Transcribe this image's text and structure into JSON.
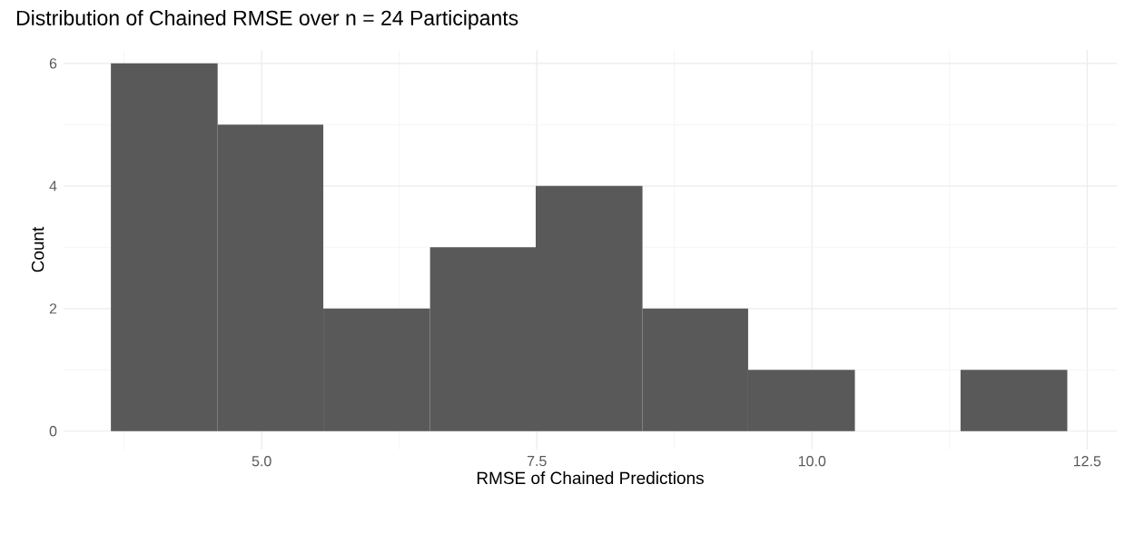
{
  "chart_data": {
    "type": "histogram",
    "title": "Distribution of Chained RMSE over n = 24 Participants",
    "xlabel": "RMSE of Chained Predictions",
    "ylabel": "Count",
    "bins": [
      3.63,
      4.6,
      5.56,
      6.53,
      7.49,
      8.46,
      9.42,
      10.39,
      11.35,
      12.32
    ],
    "values": [
      6,
      5,
      2,
      3,
      4,
      2,
      1,
      0,
      1
    ],
    "color": "#595959",
    "xlim": [
      3.2,
      12.77
    ],
    "ylim": [
      -0.3,
      6.22
    ],
    "xticks": [
      {
        "value": 5.0,
        "label": "5.0"
      },
      {
        "value": 7.5,
        "label": "7.5"
      },
      {
        "value": 10.0,
        "label": "10.0"
      },
      {
        "value": 12.5,
        "label": "12.5"
      }
    ],
    "yticks": [
      0,
      2,
      4,
      6
    ],
    "grid": true
  }
}
